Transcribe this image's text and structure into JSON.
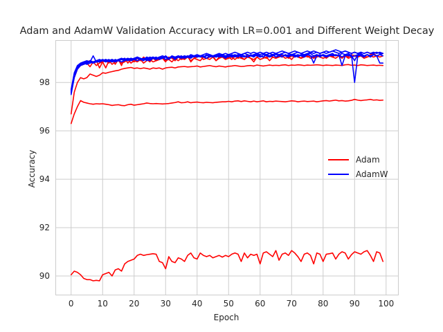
{
  "chart_data": {
    "type": "line",
    "title": "Adam and AdamW Validation Accuracy with LR=0.001 and Different Weight Decay",
    "xlabel": "Epoch",
    "ylabel": "Accuracy",
    "xlim": [
      -5,
      104
    ],
    "ylim": [
      89.2,
      99.75
    ],
    "xticks": [
      0,
      10,
      20,
      30,
      40,
      50,
      60,
      70,
      80,
      90,
      100
    ],
    "yticks": [
      90,
      92,
      94,
      96,
      98
    ],
    "grid": true,
    "legend": {
      "placement": "center-right",
      "entries": [
        "Adam",
        "AdamW"
      ]
    },
    "colors": {
      "Adam": "#ff0000",
      "AdamW": "#0000ff"
    },
    "series": [
      {
        "name": "Adam",
        "group": "Adam",
        "values": [
          96.3,
          96.7,
          97.0,
          97.25,
          97.18,
          97.15,
          97.12,
          97.1,
          97.12,
          97.11,
          97.12,
          97.1,
          97.08,
          97.05,
          97.07,
          97.08,
          97.05,
          97.04,
          97.08,
          97.1,
          97.06,
          97.08,
          97.1,
          97.12,
          97.15,
          97.13,
          97.12,
          97.13,
          97.12,
          97.11,
          97.12,
          97.13,
          97.15,
          97.17,
          97.2,
          97.16,
          97.17,
          97.2,
          97.16,
          97.18,
          97.19,
          97.17,
          97.16,
          97.18,
          97.17,
          97.16,
          97.18,
          97.19,
          97.2,
          97.2,
          97.22,
          97.2,
          97.23,
          97.24,
          97.21,
          97.24,
          97.22,
          97.2,
          97.23,
          97.2,
          97.22,
          97.24,
          97.2,
          97.22,
          97.21,
          97.23,
          97.22,
          97.21,
          97.2,
          97.22,
          97.24,
          97.23,
          97.2,
          97.22,
          97.23,
          97.21,
          97.22,
          97.23,
          97.2,
          97.22,
          97.24,
          97.25,
          97.23,
          97.25,
          97.27,
          97.24,
          97.25,
          97.23,
          97.24,
          97.26,
          97.3,
          97.27,
          97.25,
          97.27,
          97.28,
          97.3,
          97.27,
          97.28,
          97.26,
          97.27
        ]
      },
      {
        "name": "Adam",
        "group": "Adam",
        "values": [
          96.7,
          97.6,
          98.0,
          98.2,
          98.15,
          98.2,
          98.35,
          98.3,
          98.25,
          98.3,
          98.4,
          98.38,
          98.42,
          98.45,
          98.48,
          98.5,
          98.55,
          98.58,
          98.6,
          98.62,
          98.58,
          98.6,
          98.57,
          98.6,
          98.58,
          98.55,
          98.6,
          98.58,
          98.6,
          98.55,
          98.6,
          98.62,
          98.63,
          98.6,
          98.64,
          98.65,
          98.66,
          98.64,
          98.65,
          98.66,
          98.68,
          98.64,
          98.66,
          98.68,
          98.7,
          98.67,
          98.65,
          98.68,
          98.66,
          98.64,
          98.67,
          98.68,
          98.7,
          98.68,
          98.66,
          98.67,
          98.69,
          98.7,
          98.68,
          98.72,
          98.7,
          98.68,
          98.7,
          98.72,
          98.7,
          98.71,
          98.7,
          98.72,
          98.73,
          98.7,
          98.72,
          98.71,
          98.73,
          98.72,
          98.7,
          98.72,
          98.71,
          98.72,
          98.73,
          98.72,
          98.7,
          98.72,
          98.71,
          98.7,
          98.72,
          98.71,
          98.7,
          98.73,
          98.74,
          98.71,
          98.72,
          98.7,
          98.73,
          98.72,
          98.7,
          98.71,
          98.72,
          98.7,
          98.71,
          98.7
        ]
      },
      {
        "name": "Adam",
        "group": "Adam",
        "values": [
          90.05,
          90.2,
          90.15,
          90.05,
          89.9,
          89.85,
          89.85,
          89.8,
          89.82,
          89.8,
          90.05,
          90.1,
          90.15,
          90.0,
          90.25,
          90.3,
          90.2,
          90.5,
          90.6,
          90.65,
          90.7,
          90.85,
          90.9,
          90.85,
          90.88,
          90.9,
          90.92,
          90.9,
          90.6,
          90.55,
          90.3,
          90.8,
          90.6,
          90.55,
          90.75,
          90.7,
          90.6,
          90.85,
          90.95,
          90.75,
          90.7,
          90.95,
          90.85,
          90.8,
          90.85,
          90.75,
          90.8,
          90.85,
          90.78,
          90.85,
          90.8,
          90.9,
          90.95,
          90.9,
          90.6,
          90.95,
          90.75,
          90.9,
          90.85,
          90.9,
          90.5,
          90.95,
          91.0,
          90.9,
          90.8,
          91.05,
          90.65,
          90.9,
          90.95,
          90.85,
          91.05,
          90.95,
          90.8,
          90.6,
          90.9,
          90.95,
          90.85,
          90.5,
          90.95,
          90.9,
          90.6,
          90.9,
          90.92,
          90.95,
          90.7,
          90.9,
          91.0,
          90.95,
          90.7,
          90.88,
          91.0,
          90.95,
          90.9,
          91.0,
          91.05,
          90.85,
          90.6,
          91.0,
          90.95,
          90.6
        ]
      },
      {
        "name": "Adam",
        "group": "Adam",
        "values": [
          97.7,
          98.3,
          98.6,
          98.75,
          98.8,
          98.85,
          98.9,
          98.85,
          98.9,
          98.6,
          98.85,
          98.9,
          98.8,
          98.95,
          98.75,
          98.95,
          98.7,
          99.0,
          98.8,
          98.95,
          98.85,
          99.0,
          98.9,
          99.05,
          98.95,
          98.85,
          99.0,
          98.9,
          98.95,
          99.0,
          98.85,
          99.05,
          99.0,
          98.9,
          99.05,
          98.95,
          99.0,
          99.1,
          98.85,
          99.0,
          99.05,
          99.1,
          98.95,
          99.0,
          99.05,
          99.1,
          98.9,
          99.05,
          99.1,
          99.0,
          99.05,
          98.95,
          99.1,
          99.0,
          99.05,
          98.95,
          99.1,
          99.0,
          98.95,
          99.05,
          99.1,
          99.05,
          99.0,
          99.1,
          99.05,
          99.0,
          99.1,
          99.05,
          99.15,
          99.0,
          99.1,
          99.05,
          99.1,
          99.0,
          99.15,
          99.05,
          99.1,
          99.0,
          99.05,
          99.1,
          99.15,
          99.0,
          99.1,
          99.05,
          99.15,
          99.1,
          99.0,
          99.1,
          99.05,
          99.15,
          99.1,
          99.05,
          99.15,
          99.1,
          99.05,
          99.15,
          99.2,
          99.1,
          99.15,
          99.2
        ]
      },
      {
        "name": "Adam",
        "group": "Adam",
        "values": [
          97.6,
          98.2,
          98.55,
          98.7,
          98.75,
          98.8,
          98.65,
          98.85,
          98.7,
          98.8,
          98.85,
          98.6,
          98.9,
          98.75,
          98.85,
          98.9,
          98.8,
          98.85,
          98.95,
          98.8,
          98.9,
          98.85,
          98.95,
          98.8,
          98.9,
          98.95,
          98.85,
          98.9,
          98.95,
          99.0,
          98.9,
          98.95,
          98.85,
          99.0,
          98.9,
          99.0,
          98.95,
          99.05,
          98.9,
          99.0,
          98.95,
          98.9,
          99.05,
          99.0,
          98.95,
          99.05,
          98.9,
          99.0,
          99.05,
          98.95,
          99.0,
          99.05,
          98.95,
          99.05,
          99.0,
          98.95,
          99.05,
          99.0,
          98.85,
          99.05,
          98.95,
          99.0,
          99.05,
          98.9,
          99.05,
          99.0,
          99.05,
          99.1,
          99.0,
          99.05,
          98.95,
          99.1,
          99.05,
          99.0,
          99.05,
          99.1,
          99.0,
          99.05,
          99.1,
          99.05,
          99.0,
          99.05,
          99.1,
          99.05,
          99.0,
          99.1,
          99.05,
          99.1,
          99.0,
          99.05,
          99.1,
          99.05,
          99.1,
          99.0,
          99.05,
          99.1,
          99.05,
          99.1,
          99.05,
          99.1
        ]
      },
      {
        "name": "AdamW",
        "group": "AdamW",
        "values": [
          97.6,
          98.35,
          98.65,
          98.75,
          98.8,
          98.85,
          98.85,
          98.8,
          98.85,
          98.85,
          98.9,
          98.85,
          98.9,
          98.85,
          98.9,
          98.9,
          98.85,
          98.9,
          98.95,
          98.9,
          98.95,
          98.9,
          98.95,
          99.0,
          98.95,
          98.9,
          99.0,
          98.95,
          99.0,
          99.05,
          98.95,
          99.0,
          99.05,
          99.0,
          99.05,
          99.0,
          99.05,
          99.1,
          99.05,
          99.1,
          99.05,
          99.1,
          99.05,
          99.1,
          99.15,
          99.1,
          99.05,
          99.1,
          99.15,
          99.1,
          99.15,
          99.1,
          99.15,
          99.1,
          99.15,
          99.2,
          99.15,
          99.1,
          99.15,
          99.2,
          99.15,
          99.2,
          99.15,
          99.2,
          99.15,
          99.2,
          99.15,
          99.2,
          99.25,
          99.2,
          99.15,
          99.2,
          99.25,
          99.2,
          99.15,
          99.2,
          99.25,
          99.2,
          99.25,
          99.2,
          99.25,
          99.2,
          99.25,
          99.3,
          99.25,
          99.2,
          99.25,
          99.3,
          99.25,
          99.2,
          99.25,
          99.2,
          99.25,
          99.2,
          99.25,
          99.2,
          99.25,
          99.2,
          99.25,
          99.2
        ]
      },
      {
        "name": "AdamW",
        "group": "AdamW",
        "values": [
          97.5,
          98.2,
          98.55,
          98.7,
          98.75,
          98.8,
          98.9,
          98.85,
          98.9,
          98.95,
          98.9,
          98.95,
          98.9,
          98.95,
          98.9,
          98.95,
          99.0,
          98.95,
          99.0,
          98.95,
          99.0,
          99.05,
          99.0,
          98.95,
          99.05,
          99.0,
          99.05,
          99.0,
          99.05,
          99.1,
          99.05,
          99.0,
          99.1,
          99.05,
          99.1,
          99.05,
          99.1,
          99.05,
          99.15,
          99.1,
          99.15,
          99.1,
          99.15,
          99.2,
          99.15,
          99.1,
          99.15,
          99.2,
          99.15,
          99.2,
          99.15,
          99.2,
          99.25,
          99.2,
          99.15,
          99.2,
          99.25,
          99.2,
          99.25,
          99.2,
          99.25,
          99.2,
          99.25,
          99.2,
          99.25,
          99.2,
          99.25,
          99.3,
          99.25,
          99.2,
          99.25,
          99.3,
          99.25,
          99.2,
          99.25,
          99.3,
          99.25,
          99.3,
          99.25,
          99.2,
          99.25,
          99.3,
          99.25,
          99.3,
          99.35,
          99.3,
          99.25,
          99.3,
          99.25,
          99.2,
          99.25,
          99.2,
          99.25,
          99.2,
          99.25,
          99.2,
          99.2,
          99.25,
          99.2,
          99.2
        ]
      },
      {
        "name": "AdamW",
        "group": "AdamW",
        "values": [
          97.7,
          98.4,
          98.7,
          98.8,
          98.85,
          98.9,
          98.85,
          98.8,
          98.9,
          98.85,
          98.9,
          98.95,
          98.85,
          98.9,
          98.85,
          98.9,
          98.95,
          98.9,
          98.95,
          99.0,
          98.95,
          99.0,
          98.95,
          99.0,
          98.9,
          99.0,
          99.05,
          98.95,
          99.05,
          99.0,
          99.05,
          98.95,
          99.05,
          99.0,
          99.05,
          99.1,
          99.0,
          99.05,
          99.1,
          99.05,
          99.1,
          99.05,
          99.1,
          99.0,
          99.1,
          99.05,
          99.1,
          99.15,
          99.05,
          99.1,
          99.05,
          99.15,
          99.1,
          99.05,
          99.15,
          99.1,
          99.05,
          99.15,
          99.1,
          99.15,
          99.1,
          99.05,
          99.15,
          99.1,
          99.15,
          99.05,
          99.1,
          99.15,
          99.1,
          99.15,
          99.1,
          99.15,
          99.05,
          99.15,
          99.1,
          99.15,
          99.2,
          99.1,
          99.15,
          99.05,
          99.15,
          99.1,
          99.15,
          99.2,
          99.1,
          99.15,
          99.05,
          99.15,
          99.2,
          99.1,
          98.9,
          99.15,
          99.2,
          99.1,
          99.15,
          99.05,
          99.15,
          99.1,
          99.15,
          99.2
        ]
      },
      {
        "name": "AdamW",
        "group": "AdamW",
        "values": [
          97.55,
          98.3,
          98.6,
          98.75,
          98.8,
          98.75,
          98.8,
          98.85,
          98.9,
          98.85,
          98.9,
          98.85,
          98.9,
          98.95,
          98.85,
          98.9,
          98.95,
          98.9,
          98.95,
          98.9,
          98.95,
          99.0,
          98.95,
          98.9,
          99.0,
          98.95,
          99.0,
          99.05,
          98.95,
          99.0,
          99.05,
          99.0,
          99.05,
          98.95,
          99.05,
          99.0,
          99.1,
          99.05,
          99.0,
          99.1,
          99.05,
          99.1,
          99.05,
          99.0,
          99.1,
          99.05,
          99.1,
          99.05,
          99.1,
          99.0,
          99.1,
          99.05,
          99.1,
          99.15,
          99.05,
          99.1,
          99.05,
          99.1,
          99.15,
          99.1,
          99.05,
          99.15,
          99.1,
          99.05,
          99.1,
          99.15,
          99.1,
          99.05,
          99.15,
          99.1,
          99.15,
          99.05,
          99.1,
          99.15,
          99.1,
          99.15,
          99.1,
          99.05,
          99.15,
          99.1,
          99.15,
          99.1,
          99.15,
          99.1,
          99.15,
          99.1,
          99.2,
          99.15,
          99.1,
          99.15,
          98.0,
          99.1,
          99.15,
          99.1,
          99.15,
          99.1,
          99.15,
          99.1,
          99.15,
          99.1
        ]
      },
      {
        "name": "AdamW",
        "group": "AdamW",
        "values": [
          97.65,
          98.35,
          98.65,
          98.8,
          98.85,
          98.8,
          98.85,
          99.1,
          98.85,
          98.9,
          98.95,
          98.9,
          98.95,
          98.85,
          98.95,
          98.9,
          98.95,
          99.0,
          98.9,
          99.0,
          98.95,
          99.05,
          98.95,
          99.0,
          98.95,
          99.05,
          99.0,
          98.95,
          99.05,
          99.0,
          99.1,
          99.0,
          99.05,
          99.0,
          99.1,
          99.05,
          99.0,
          99.1,
          99.05,
          99.1,
          99.05,
          99.1,
          99.05,
          99.15,
          99.05,
          99.1,
          99.05,
          99.15,
          99.1,
          99.05,
          99.15,
          99.1,
          99.05,
          99.15,
          99.1,
          99.05,
          99.15,
          99.1,
          99.05,
          99.15,
          99.1,
          99.05,
          99.15,
          99.1,
          99.15,
          99.05,
          99.1,
          99.15,
          99.1,
          99.05,
          99.15,
          99.1,
          99.15,
          99.1,
          99.05,
          99.15,
          99.1,
          98.8,
          99.1,
          99.15,
          99.1,
          99.05,
          99.1,
          99.15,
          99.1,
          99.15,
          98.7,
          99.1,
          99.15,
          99.05,
          99.1,
          99.15,
          99.1,
          99.05,
          99.15,
          99.1,
          99.15,
          99.1,
          98.8,
          98.8
        ]
      }
    ]
  }
}
